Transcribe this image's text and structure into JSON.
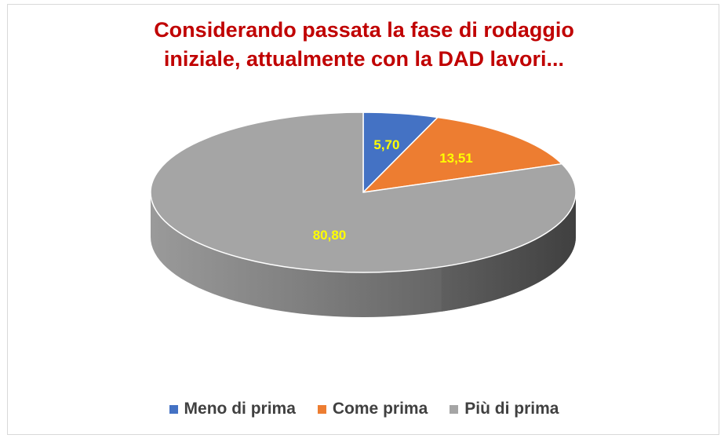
{
  "chart_data": {
    "type": "pie",
    "title_lines": [
      "Considerando passata la fase di rodaggio",
      "iniziale, attualmente con la DAD lavori..."
    ],
    "categories": [
      "Meno di prima",
      "Come prima",
      "Più di prima"
    ],
    "values": [
      5.7,
      13.51,
      80.8
    ],
    "labels": [
      "5,70",
      "13,51",
      "80,80"
    ],
    "colors": [
      "#4472c4",
      "#ed7d31",
      "#a5a5a5"
    ],
    "label_color": "#ffff00",
    "legend_position": "bottom"
  }
}
